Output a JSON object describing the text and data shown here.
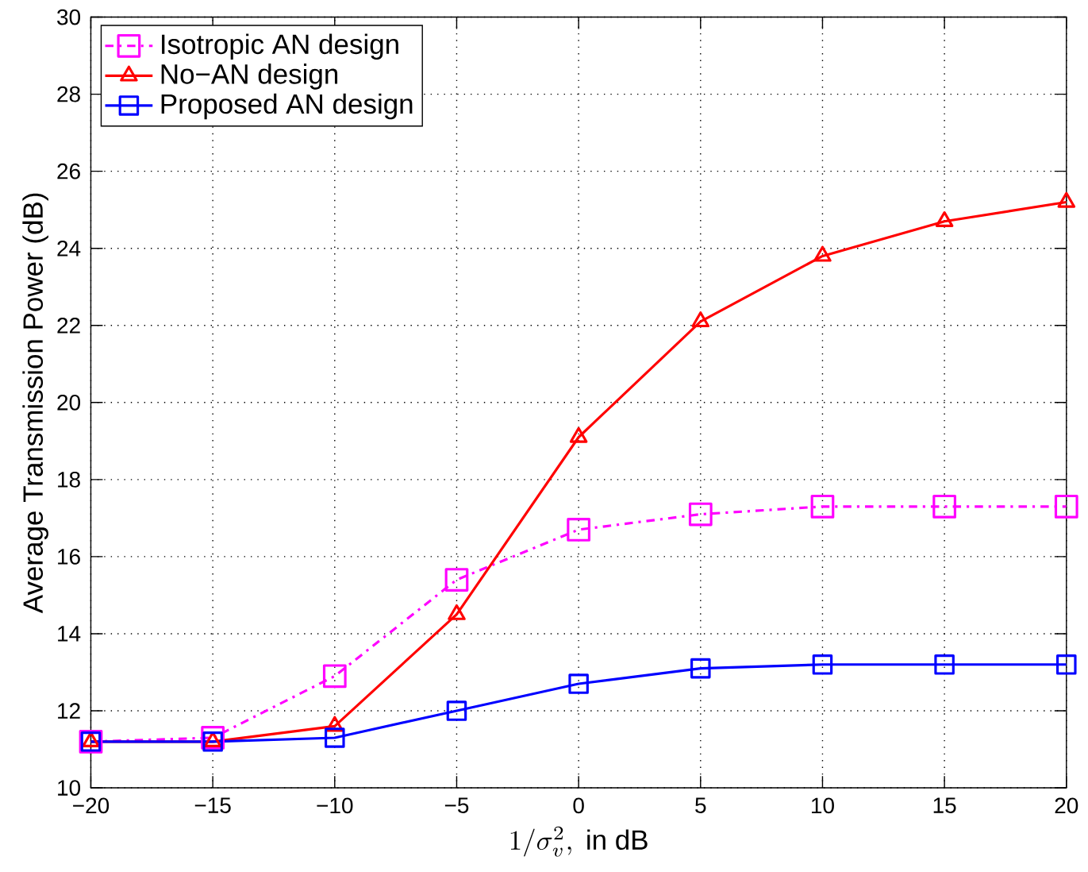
{
  "chart_data": {
    "type": "line",
    "xlabel": "1/\\sigma_v^2,\\ \\mbox{in dB}",
    "ylabel": "Average Transmission Power (dB)",
    "x": [
      -20,
      -15,
      -10,
      -5,
      0,
      5,
      10,
      15,
      20
    ],
    "series": [
      {
        "name": "Isotropic AN design",
        "color": "#ff00ff",
        "marker": "square",
        "line_style": "dashdot",
        "values": [
          11.2,
          11.3,
          12.9,
          15.4,
          16.7,
          17.1,
          17.3,
          17.3,
          17.3
        ]
      },
      {
        "name": "No−AN design",
        "color": "#ff0000",
        "marker": "triangle",
        "line_style": "solid",
        "values": [
          11.2,
          11.2,
          11.6,
          14.5,
          19.1,
          22.1,
          23.8,
          24.7,
          25.2
        ]
      },
      {
        "name": "Proposed AN design",
        "color": "#0000ff",
        "marker": "square",
        "line_style": "solid",
        "values": [
          11.2,
          11.2,
          11.3,
          12.0,
          12.7,
          13.1,
          13.2,
          13.2,
          13.2
        ]
      }
    ],
    "xlim": [
      -20,
      20
    ],
    "ylim": [
      10,
      30
    ],
    "xticks": [
      {
        "value": -20,
        "label": "−20"
      },
      {
        "value": -15,
        "label": "−15"
      },
      {
        "value": -10,
        "label": "−10"
      },
      {
        "value": -5,
        "label": "−5"
      },
      0,
      5,
      10,
      15,
      20
    ],
    "yticks": [
      10,
      12,
      14,
      16,
      18,
      20,
      22,
      24,
      26,
      28,
      30
    ],
    "grid": true,
    "legend": "top left"
  }
}
